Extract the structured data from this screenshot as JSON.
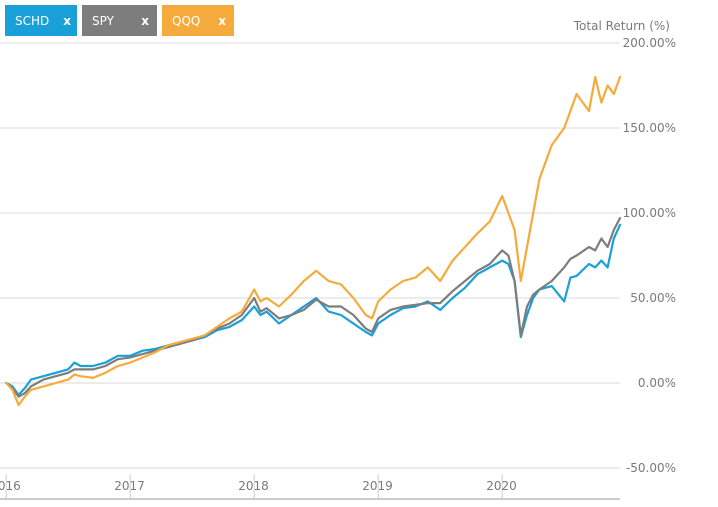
{
  "legend": {
    "chips": [
      {
        "label": "SCHD",
        "close": "x",
        "color": "#1aa0d8"
      },
      {
        "label": "SPY",
        "close": "x",
        "color": "#7d7d7d"
      },
      {
        "label": "QQQ",
        "close": "x",
        "color": "#f5ab3c"
      }
    ]
  },
  "chart_data": {
    "type": "line",
    "ylabel": "Total Return (%)",
    "ylim": [
      -50,
      200
    ],
    "yticks": [
      {
        "value": 200,
        "label": "200.00%"
      },
      {
        "value": 150,
        "label": "150.00%"
      },
      {
        "value": 100,
        "label": "100.00%"
      },
      {
        "value": 50,
        "label": "50.00%"
      },
      {
        "value": 0,
        "label": "0.00%"
      },
      {
        "value": -50,
        "label": "-50.00%"
      }
    ],
    "xlim": [
      2015.95,
      2020.95
    ],
    "xticks": [
      {
        "value": 2016,
        "label": "2016"
      },
      {
        "value": 2017,
        "label": "2017"
      },
      {
        "value": 2018,
        "label": "2018"
      },
      {
        "value": 2019,
        "label": "2019"
      },
      {
        "value": 2020,
        "label": "2020"
      }
    ],
    "grid": true,
    "series": [
      {
        "name": "SCHD",
        "color": "#1aa0d8",
        "x": [
          2016.0,
          2016.05,
          2016.1,
          2016.15,
          2016.2,
          2016.3,
          2016.4,
          2016.5,
          2016.55,
          2016.6,
          2016.7,
          2016.8,
          2016.9,
          2017.0,
          2017.1,
          2017.2,
          2017.3,
          2017.4,
          2017.5,
          2017.6,
          2017.7,
          2017.8,
          2017.9,
          2018.0,
          2018.05,
          2018.1,
          2018.2,
          2018.3,
          2018.4,
          2018.5,
          2018.6,
          2018.7,
          2018.8,
          2018.9,
          2018.95,
          2019.0,
          2019.1,
          2019.2,
          2019.3,
          2019.4,
          2019.5,
          2019.6,
          2019.7,
          2019.8,
          2019.9,
          2020.0,
          2020.05,
          2020.1,
          2020.15,
          2020.2,
          2020.25,
          2020.3,
          2020.4,
          2020.5,
          2020.55,
          2020.6,
          2020.7,
          2020.75,
          2020.8,
          2020.85,
          2020.9,
          2020.95
        ],
        "y": [
          0,
          -2,
          -7,
          -3,
          2,
          4,
          6,
          8,
          12,
          10,
          10,
          12,
          16,
          16,
          19,
          20,
          22,
          24,
          25,
          27,
          31,
          33,
          37,
          45,
          40,
          42,
          35,
          40,
          45,
          50,
          42,
          40,
          35,
          30,
          28,
          35,
          40,
          44,
          45,
          48,
          43,
          50,
          56,
          64,
          68,
          72,
          70,
          60,
          27,
          40,
          50,
          55,
          57,
          48,
          62,
          63,
          70,
          68,
          72,
          68,
          85,
          93
        ]
      },
      {
        "name": "SPY",
        "color": "#7d7d7d",
        "x": [
          2016.0,
          2016.05,
          2016.1,
          2016.15,
          2016.2,
          2016.3,
          2016.4,
          2016.5,
          2016.55,
          2016.6,
          2016.7,
          2016.8,
          2016.9,
          2017.0,
          2017.1,
          2017.2,
          2017.3,
          2017.4,
          2017.5,
          2017.6,
          2017.7,
          2017.8,
          2017.9,
          2018.0,
          2018.05,
          2018.1,
          2018.2,
          2018.3,
          2018.4,
          2018.5,
          2018.6,
          2018.7,
          2018.8,
          2018.9,
          2018.95,
          2019.0,
          2019.1,
          2019.2,
          2019.3,
          2019.4,
          2019.5,
          2019.6,
          2019.7,
          2019.8,
          2019.9,
          2020.0,
          2020.05,
          2020.1,
          2020.15,
          2020.2,
          2020.25,
          2020.3,
          2020.4,
          2020.5,
          2020.55,
          2020.6,
          2020.7,
          2020.75,
          2020.8,
          2020.85,
          2020.9,
          2020.95
        ],
        "y": [
          0,
          -3,
          -8,
          -6,
          -2,
          2,
          4,
          6,
          8,
          8,
          8,
          10,
          14,
          15,
          17,
          19,
          21,
          23,
          25,
          28,
          32,
          35,
          40,
          50,
          42,
          44,
          38,
          40,
          43,
          49,
          45,
          45,
          40,
          32,
          30,
          38,
          43,
          45,
          46,
          47,
          47,
          54,
          60,
          66,
          70,
          78,
          75,
          60,
          28,
          45,
          52,
          55,
          60,
          68,
          73,
          75,
          80,
          78,
          85,
          80,
          90,
          97
        ]
      },
      {
        "name": "QQQ",
        "color": "#f5ab3c",
        "x": [
          2016.0,
          2016.05,
          2016.1,
          2016.15,
          2016.2,
          2016.3,
          2016.4,
          2016.5,
          2016.55,
          2016.6,
          2016.7,
          2016.8,
          2016.9,
          2017.0,
          2017.1,
          2017.2,
          2017.3,
          2017.4,
          2017.5,
          2017.6,
          2017.7,
          2017.8,
          2017.9,
          2018.0,
          2018.05,
          2018.1,
          2018.2,
          2018.3,
          2018.4,
          2018.5,
          2018.6,
          2018.7,
          2018.8,
          2018.9,
          2018.95,
          2019.0,
          2019.1,
          2019.2,
          2019.3,
          2019.4,
          2019.5,
          2019.6,
          2019.7,
          2019.8,
          2019.9,
          2020.0,
          2020.05,
          2020.1,
          2020.15,
          2020.2,
          2020.25,
          2020.3,
          2020.4,
          2020.5,
          2020.55,
          2020.6,
          2020.7,
          2020.75,
          2020.8,
          2020.85,
          2020.9,
          2020.95
        ],
        "y": [
          0,
          -4,
          -13,
          -8,
          -4,
          -2,
          0,
          2,
          5,
          4,
          3,
          6,
          10,
          12,
          15,
          18,
          22,
          24,
          26,
          28,
          33,
          38,
          42,
          55,
          48,
          50,
          45,
          52,
          60,
          66,
          60,
          58,
          50,
          40,
          38,
          48,
          55,
          60,
          62,
          68,
          60,
          72,
          80,
          88,
          95,
          110,
          100,
          90,
          60,
          80,
          100,
          120,
          140,
          150,
          160,
          170,
          160,
          180,
          165,
          175,
          170,
          180
        ]
      }
    ]
  }
}
